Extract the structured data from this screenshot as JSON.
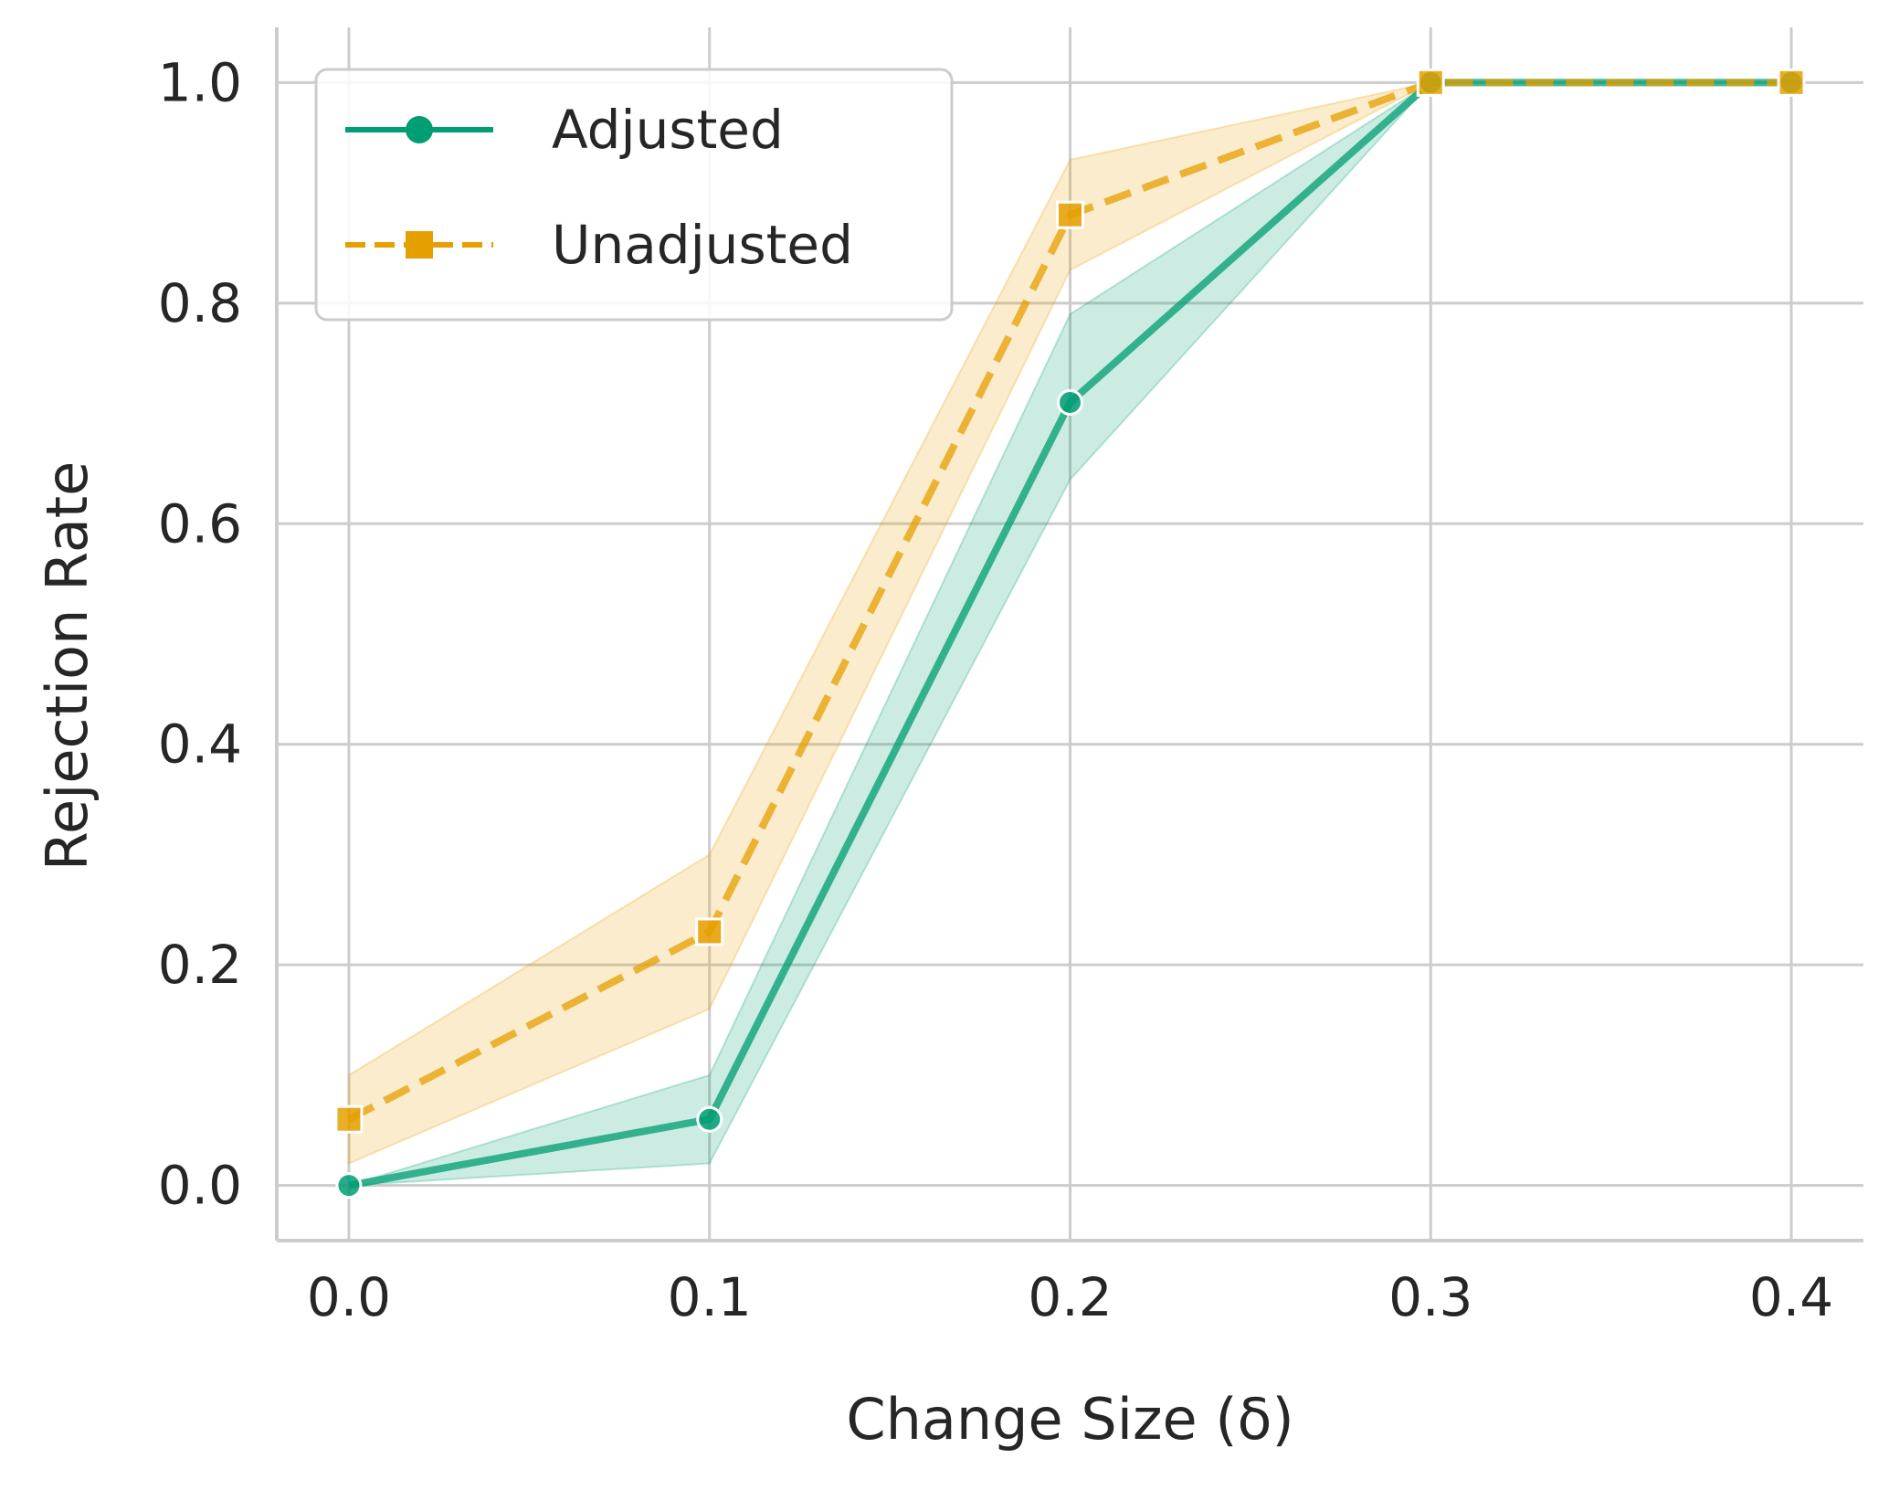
{
  "chart_data": {
    "type": "line",
    "title": "",
    "xlabel": "Change Size (δ)",
    "ylabel": "Rejection Rate",
    "x": [
      0.0,
      0.1,
      0.2,
      0.3,
      0.4
    ],
    "xticks": [
      "0.0",
      "0.1",
      "0.2",
      "0.3",
      "0.4"
    ],
    "yticks": [
      "0.0",
      "0.2",
      "0.4",
      "0.6",
      "0.8",
      "1.0"
    ],
    "xlim": [
      -0.02,
      0.42
    ],
    "ylim": [
      -0.05,
      1.05
    ],
    "grid": true,
    "legend_position": "top-left",
    "series": [
      {
        "name": "Adjusted",
        "color": "#009E73",
        "line_style": "solid",
        "marker": "circle",
        "values": [
          0.0,
          0.06,
          0.71,
          1.0,
          1.0
        ],
        "ci_lower": [
          0.0,
          0.02,
          0.64,
          1.0,
          1.0
        ],
        "ci_upper": [
          0.0,
          0.1,
          0.79,
          1.0,
          1.0
        ]
      },
      {
        "name": "Unadjusted",
        "color": "#E69F00",
        "line_style": "dashed",
        "marker": "square",
        "values": [
          0.06,
          0.23,
          0.88,
          1.0,
          1.0
        ],
        "ci_lower": [
          0.02,
          0.16,
          0.83,
          1.0,
          1.0
        ],
        "ci_upper": [
          0.1,
          0.3,
          0.93,
          1.0,
          1.0
        ]
      }
    ]
  }
}
